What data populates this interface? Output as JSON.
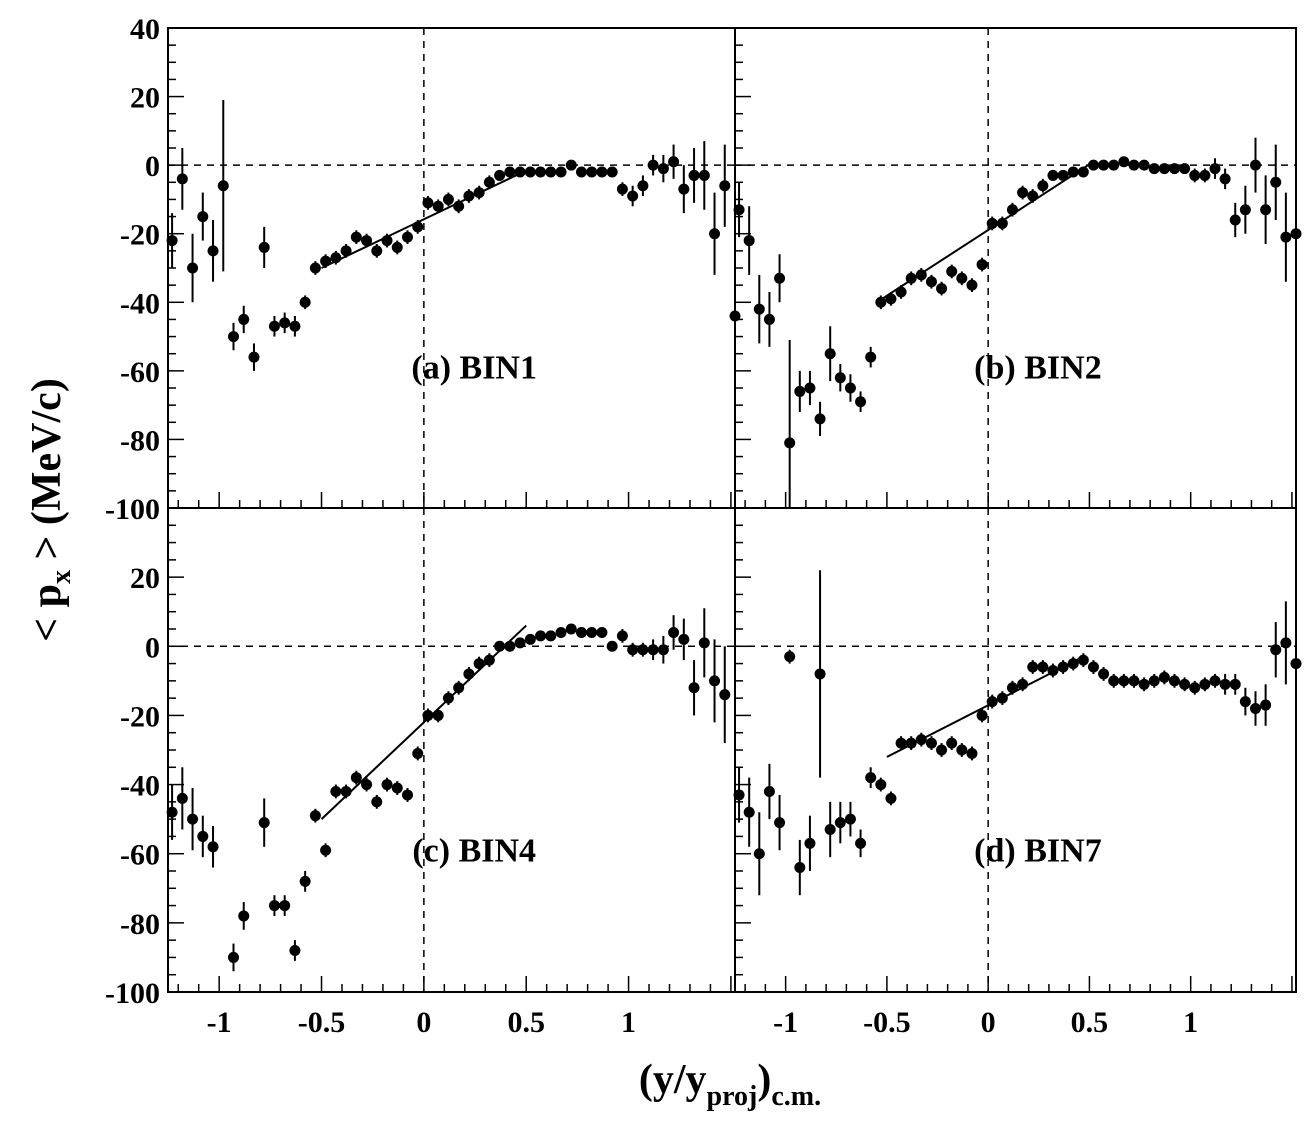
{
  "chart_data": {
    "type": "scatter",
    "xlabel": "(y/y",
    "xlabel_sub": "proj",
    "xlabel_tail": ")",
    "xlabel_sub2": "c.m.",
    "ylabel": "< p",
    "ylabel_sub": "x",
    "ylabel_tail": " >  (MeV/c)",
    "xlim": [
      -1.25,
      1.52
    ],
    "ylim": [
      -100,
      40
    ],
    "x_ticks": [
      -1,
      -0.5,
      0,
      0.5,
      1
    ],
    "x_tick_labels": [
      "-1",
      "-0.5",
      "0",
      "0.5",
      "1"
    ],
    "y_ticks_top": [
      -100,
      -80,
      -60,
      -40,
      -20,
      0,
      20,
      40
    ],
    "y_tick_labels_top": [
      "-100",
      "-80",
      "-60",
      "-40",
      "-20",
      "0",
      "20",
      "40"
    ],
    "y_ticks_bottom": [
      -100,
      -80,
      -60,
      -40,
      -20,
      0,
      20
    ],
    "y_tick_labels_bottom": [
      "-100",
      "-80",
      "-60",
      "-40",
      "-20",
      "0",
      "20"
    ],
    "grid": false,
    "reference_lines": {
      "x": 0,
      "y": 0,
      "style": "dashed"
    },
    "panels": [
      {
        "label": "(a) BIN1",
        "fit_line": {
          "x": [
            -0.5,
            0.45
          ],
          "y": [
            -30,
            -3
          ]
        },
        "points": [
          [
            -1.23,
            -22,
            8
          ],
          [
            -1.18,
            -4,
            9
          ],
          [
            -1.13,
            -30,
            10
          ],
          [
            -1.08,
            -15,
            7
          ],
          [
            -1.03,
            -25,
            9
          ],
          [
            -0.98,
            -6,
            25
          ],
          [
            -0.93,
            -50,
            4
          ],
          [
            -0.88,
            -45,
            4
          ],
          [
            -0.83,
            -56,
            4
          ],
          [
            -0.78,
            -24,
            6
          ],
          [
            -0.73,
            -47,
            3
          ],
          [
            -0.68,
            -46,
            3
          ],
          [
            -0.63,
            -47,
            3
          ],
          [
            -0.58,
            -40,
            2
          ],
          [
            -0.53,
            -30,
            2
          ],
          [
            -0.48,
            -28,
            2
          ],
          [
            -0.43,
            -27,
            2
          ],
          [
            -0.38,
            -25,
            2
          ],
          [
            -0.33,
            -21,
            2
          ],
          [
            -0.28,
            -22,
            2
          ],
          [
            -0.23,
            -25,
            2
          ],
          [
            -0.18,
            -22,
            2
          ],
          [
            -0.13,
            -24,
            2
          ],
          [
            -0.08,
            -21,
            2
          ],
          [
            -0.03,
            -18,
            2
          ],
          [
            0.02,
            -11,
            2
          ],
          [
            0.07,
            -12,
            2
          ],
          [
            0.12,
            -10,
            2
          ],
          [
            0.17,
            -12,
            2
          ],
          [
            0.22,
            -9,
            2
          ],
          [
            0.27,
            -8,
            2
          ],
          [
            0.32,
            -5,
            2
          ],
          [
            0.37,
            -3,
            1
          ],
          [
            0.42,
            -2,
            1
          ],
          [
            0.47,
            -2,
            1
          ],
          [
            0.52,
            -2,
            1
          ],
          [
            0.57,
            -2,
            1
          ],
          [
            0.62,
            -2,
            1
          ],
          [
            0.67,
            -2,
            1
          ],
          [
            0.72,
            0,
            1
          ],
          [
            0.77,
            -2,
            1
          ],
          [
            0.82,
            -2,
            1
          ],
          [
            0.87,
            -2,
            1
          ],
          [
            0.92,
            -2,
            1
          ],
          [
            0.97,
            -7,
            2
          ],
          [
            1.02,
            -9,
            3
          ],
          [
            1.07,
            -6,
            3
          ],
          [
            1.12,
            0,
            3
          ],
          [
            1.17,
            -1,
            4
          ],
          [
            1.22,
            1,
            5
          ],
          [
            1.27,
            -7,
            7
          ],
          [
            1.32,
            -3,
            8
          ],
          [
            1.37,
            -3,
            10
          ],
          [
            1.42,
            -20,
            12
          ],
          [
            1.47,
            -6,
            12
          ],
          [
            1.52,
            -44,
            18
          ]
        ]
      },
      {
        "label": "(b) BIN2",
        "fit_line": {
          "x": [
            -0.55,
            0.52
          ],
          "y": [
            -40,
            1
          ]
        },
        "points": [
          [
            -1.23,
            -13,
            8
          ],
          [
            -1.18,
            -22,
            10
          ],
          [
            -1.13,
            -42,
            10
          ],
          [
            -1.08,
            -45,
            8
          ],
          [
            -1.03,
            -33,
            7
          ],
          [
            -0.98,
            -81,
            30
          ],
          [
            -0.93,
            -66,
            6
          ],
          [
            -0.88,
            -65,
            5
          ],
          [
            -0.83,
            -74,
            5
          ],
          [
            -0.78,
            -55,
            8
          ],
          [
            -0.73,
            -62,
            4
          ],
          [
            -0.68,
            -65,
            4
          ],
          [
            -0.63,
            -69,
            3
          ],
          [
            -0.58,
            -56,
            3
          ],
          [
            -0.53,
            -40,
            2
          ],
          [
            -0.48,
            -39,
            2
          ],
          [
            -0.43,
            -37,
            2
          ],
          [
            -0.38,
            -33,
            2
          ],
          [
            -0.33,
            -32,
            2
          ],
          [
            -0.28,
            -34,
            2
          ],
          [
            -0.23,
            -36,
            2
          ],
          [
            -0.18,
            -31,
            2
          ],
          [
            -0.13,
            -33,
            2
          ],
          [
            -0.08,
            -35,
            2
          ],
          [
            -0.03,
            -29,
            2
          ],
          [
            0.02,
            -17,
            2
          ],
          [
            0.07,
            -17,
            2
          ],
          [
            0.12,
            -13,
            2
          ],
          [
            0.17,
            -8,
            2
          ],
          [
            0.22,
            -9,
            2
          ],
          [
            0.27,
            -6,
            2
          ],
          [
            0.32,
            -3,
            1
          ],
          [
            0.37,
            -3,
            1
          ],
          [
            0.42,
            -2,
            1
          ],
          [
            0.47,
            -2,
            1
          ],
          [
            0.52,
            0,
            1
          ],
          [
            0.57,
            0,
            1
          ],
          [
            0.62,
            0,
            1
          ],
          [
            0.67,
            1,
            1
          ],
          [
            0.72,
            0,
            1
          ],
          [
            0.77,
            0,
            1
          ],
          [
            0.82,
            -1,
            1
          ],
          [
            0.87,
            -1,
            1
          ],
          [
            0.92,
            -1,
            1
          ],
          [
            0.97,
            -1,
            1
          ],
          [
            1.02,
            -3,
            2
          ],
          [
            1.07,
            -3,
            2
          ],
          [
            1.12,
            -1,
            3
          ],
          [
            1.17,
            -4,
            3
          ],
          [
            1.22,
            -16,
            5
          ],
          [
            1.27,
            -13,
            7
          ],
          [
            1.32,
            0,
            8
          ],
          [
            1.37,
            -13,
            10
          ],
          [
            1.42,
            -5,
            11
          ],
          [
            1.47,
            -21,
            13
          ],
          [
            1.52,
            -20,
            15
          ]
        ]
      },
      {
        "label": "(c) BIN4",
        "fit_line": {
          "x": [
            -0.5,
            0.5
          ],
          "y": [
            -50,
            6
          ]
        },
        "points": [
          [
            -1.23,
            -48,
            8
          ],
          [
            -1.18,
            -44,
            9
          ],
          [
            -1.13,
            -50,
            9
          ],
          [
            -1.08,
            -55,
            6
          ],
          [
            -1.03,
            -58,
            6
          ],
          [
            -0.93,
            -90,
            4
          ],
          [
            -0.88,
            -78,
            4
          ],
          [
            -0.78,
            -51,
            7
          ],
          [
            -0.73,
            -75,
            3
          ],
          [
            -0.68,
            -75,
            3
          ],
          [
            -0.63,
            -88,
            3
          ],
          [
            -0.58,
            -68,
            3
          ],
          [
            -0.53,
            -49,
            2
          ],
          [
            -0.48,
            -59,
            2
          ],
          [
            -0.43,
            -42,
            2
          ],
          [
            -0.38,
            -42,
            2
          ],
          [
            -0.33,
            -38,
            2
          ],
          [
            -0.28,
            -40,
            2
          ],
          [
            -0.23,
            -45,
            2
          ],
          [
            -0.18,
            -40,
            2
          ],
          [
            -0.13,
            -41,
            2
          ],
          [
            -0.08,
            -43,
            2
          ],
          [
            -0.03,
            -31,
            2
          ],
          [
            0.02,
            -20,
            2
          ],
          [
            0.07,
            -20,
            2
          ],
          [
            0.12,
            -15,
            2
          ],
          [
            0.17,
            -12,
            2
          ],
          [
            0.22,
            -8,
            2
          ],
          [
            0.27,
            -5,
            2
          ],
          [
            0.32,
            -4,
            2
          ],
          [
            0.37,
            0,
            1
          ],
          [
            0.42,
            0,
            1
          ],
          [
            0.47,
            1,
            1
          ],
          [
            0.52,
            2,
            1
          ],
          [
            0.57,
            3,
            1
          ],
          [
            0.62,
            3,
            1
          ],
          [
            0.67,
            4,
            1
          ],
          [
            0.72,
            5,
            1
          ],
          [
            0.77,
            4,
            1
          ],
          [
            0.82,
            4,
            1
          ],
          [
            0.87,
            4,
            1
          ],
          [
            0.92,
            0,
            1
          ],
          [
            0.97,
            3,
            2
          ],
          [
            1.02,
            -1,
            2
          ],
          [
            1.07,
            -1,
            2
          ],
          [
            1.12,
            -1,
            3
          ],
          [
            1.17,
            -1,
            4
          ],
          [
            1.22,
            4,
            5
          ],
          [
            1.27,
            2,
            6
          ],
          [
            1.32,
            -12,
            8
          ],
          [
            1.37,
            1,
            10
          ],
          [
            1.42,
            -10,
            12
          ],
          [
            1.47,
            -14,
            14
          ]
        ]
      },
      {
        "label": "(d) BIN7",
        "fit_line": {
          "x": [
            -0.5,
            0.47
          ],
          "y": [
            -32,
            -3
          ]
        },
        "points": [
          [
            -1.23,
            -43,
            8
          ],
          [
            -1.18,
            -48,
            10
          ],
          [
            -1.13,
            -60,
            12
          ],
          [
            -1.08,
            -42,
            8
          ],
          [
            -1.03,
            -51,
            8
          ],
          [
            -0.98,
            -3,
            2
          ],
          [
            -0.93,
            -64,
            8
          ],
          [
            -0.88,
            -57,
            8
          ],
          [
            -0.83,
            -8,
            30
          ],
          [
            -0.78,
            -53,
            8
          ],
          [
            -0.73,
            -51,
            6
          ],
          [
            -0.68,
            -50,
            5
          ],
          [
            -0.63,
            -57,
            4
          ],
          [
            -0.58,
            -38,
            3
          ],
          [
            -0.53,
            -40,
            2
          ],
          [
            -0.48,
            -44,
            2
          ],
          [
            -0.43,
            -28,
            2
          ],
          [
            -0.38,
            -28,
            2
          ],
          [
            -0.33,
            -27,
            2
          ],
          [
            -0.28,
            -28,
            2
          ],
          [
            -0.23,
            -30,
            2
          ],
          [
            -0.18,
            -28,
            2
          ],
          [
            -0.13,
            -30,
            2
          ],
          [
            -0.08,
            -31,
            2
          ],
          [
            -0.03,
            -20,
            2
          ],
          [
            0.02,
            -16,
            2
          ],
          [
            0.07,
            -15,
            2
          ],
          [
            0.12,
            -12,
            2
          ],
          [
            0.17,
            -11,
            2
          ],
          [
            0.22,
            -6,
            2
          ],
          [
            0.27,
            -6,
            2
          ],
          [
            0.32,
            -7,
            2
          ],
          [
            0.37,
            -6,
            2
          ],
          [
            0.42,
            -5,
            2
          ],
          [
            0.47,
            -4,
            2
          ],
          [
            0.52,
            -6,
            2
          ],
          [
            0.57,
            -8,
            2
          ],
          [
            0.62,
            -10,
            2
          ],
          [
            0.67,
            -10,
            2
          ],
          [
            0.72,
            -10,
            2
          ],
          [
            0.77,
            -11,
            2
          ],
          [
            0.82,
            -10,
            2
          ],
          [
            0.87,
            -9,
            2
          ],
          [
            0.92,
            -10,
            2
          ],
          [
            0.97,
            -11,
            2
          ],
          [
            1.02,
            -12,
            2
          ],
          [
            1.07,
            -11,
            2
          ],
          [
            1.12,
            -10,
            2
          ],
          [
            1.17,
            -11,
            3
          ],
          [
            1.22,
            -11,
            3
          ],
          [
            1.27,
            -16,
            4
          ],
          [
            1.32,
            -18,
            5
          ],
          [
            1.37,
            -17,
            6
          ],
          [
            1.42,
            -1,
            8
          ],
          [
            1.47,
            1,
            12
          ],
          [
            1.52,
            -5,
            12
          ]
        ]
      }
    ]
  }
}
